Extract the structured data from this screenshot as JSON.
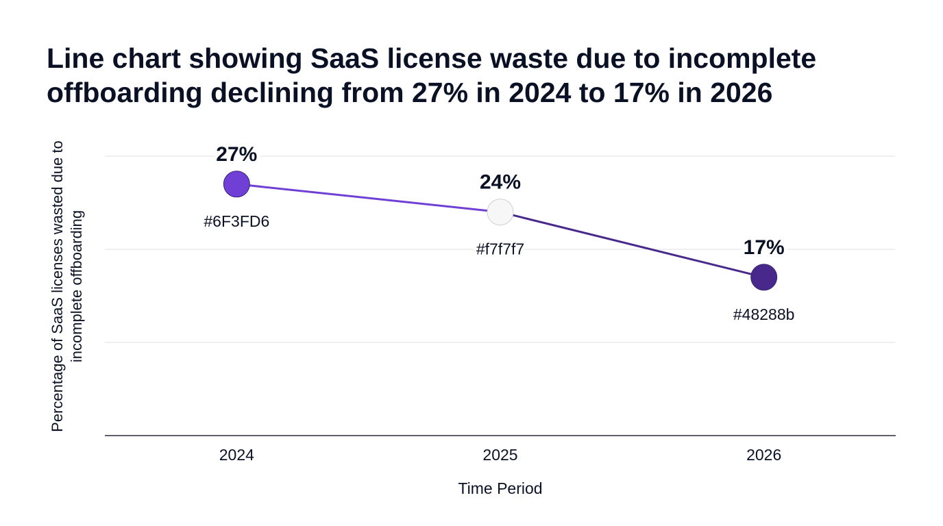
{
  "chart_data": {
    "type": "line",
    "title": "Line chart showing SaaS license waste due to incomplete offboarding declining from 27% in 2024 to 17% in 2026",
    "xlabel": "Time Period",
    "ylabel": "Percentage of SaaS licenses wasted due to incomplete offboarding",
    "categories": [
      "2024",
      "2025",
      "2026"
    ],
    "values": [
      27,
      24,
      17
    ],
    "value_labels": [
      "27%",
      "24%",
      "17%"
    ],
    "point_colors": [
      "#6F3FD6",
      "#f7f7f7",
      "#48288b"
    ],
    "point_color_labels": [
      "#6F3FD6",
      "#f7f7f7",
      "#48288b"
    ],
    "segment_colors": [
      "#6F3FD6",
      "#48288b"
    ],
    "ylim": [
      0,
      30
    ],
    "yticks": [
      0,
      10,
      20,
      30
    ],
    "grid": true,
    "legend": "none"
  }
}
